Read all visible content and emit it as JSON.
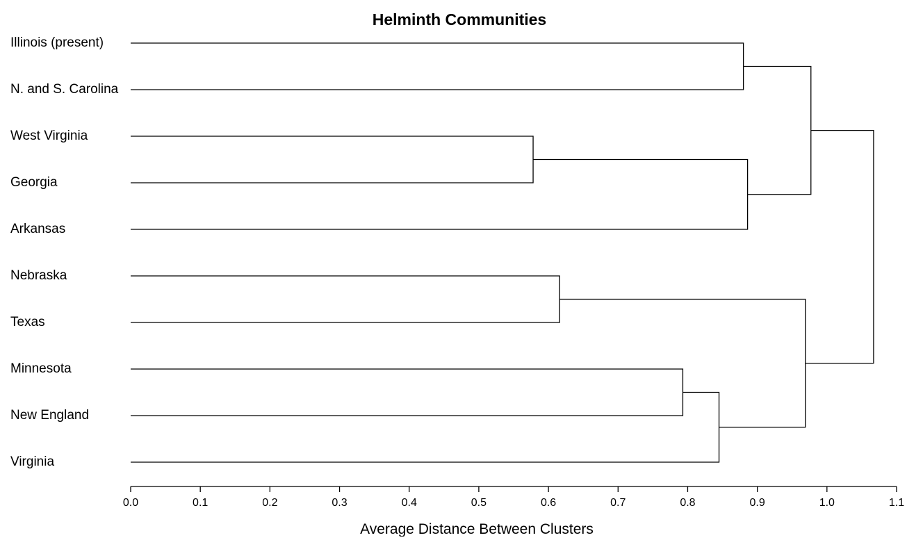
{
  "title": "Helminth Communities",
  "xlabel": "Average Distance Between Clusters",
  "axis": {
    "min": 0.0,
    "max": 1.1,
    "ticks": [
      "0.0",
      "0.1",
      "0.2",
      "0.3",
      "0.4",
      "0.5",
      "0.6",
      "0.7",
      "0.8",
      "0.9",
      "1.0",
      "1.1"
    ]
  },
  "leaves": [
    "Illinois (present)",
    "N. and S. Carolina",
    "West Virginia",
    "Georgia",
    "Arkansas",
    "Nebraska",
    "Texas",
    "Minnesota",
    "New England",
    "Virginia"
  ],
  "merges": [
    {
      "id": "m1",
      "children": [
        "L2",
        "L3"
      ],
      "height": 0.578
    },
    {
      "id": "m2",
      "children": [
        "L5",
        "L6"
      ],
      "height": 0.616
    },
    {
      "id": "m3",
      "children": [
        "L7",
        "L8"
      ],
      "height": 0.793
    },
    {
      "id": "m4",
      "children": [
        "m3",
        "L9"
      ],
      "height": 0.845
    },
    {
      "id": "m5",
      "children": [
        "L0",
        "L1"
      ],
      "height": 0.88
    },
    {
      "id": "m6",
      "children": [
        "m1",
        "L4"
      ],
      "height": 0.886
    },
    {
      "id": "m7",
      "children": [
        "m2",
        "m4"
      ],
      "height": 0.969
    },
    {
      "id": "m8",
      "children": [
        "m5",
        "m6"
      ],
      "height": 0.977
    },
    {
      "id": "m9",
      "children": [
        "m8",
        "m7"
      ],
      "height": 1.067
    }
  ]
}
